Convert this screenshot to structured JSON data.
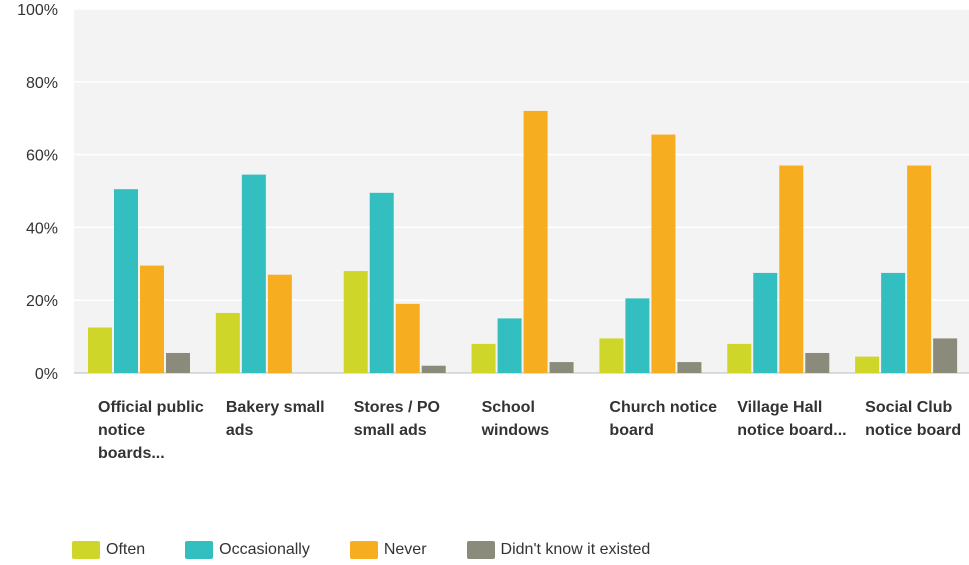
{
  "chart_data": {
    "type": "bar",
    "categories": [
      "Official public notice boards...",
      "Bakery small ads",
      "Stores / PO small ads",
      "School windows",
      "Church notice board",
      "Village Hall notice board...",
      "Social Club notice board"
    ],
    "series": [
      {
        "name": "Often",
        "color": "#cdd629",
        "values": [
          12.5,
          16.5,
          28,
          8,
          9.5,
          8,
          4.5
        ]
      },
      {
        "name": "Occasionally",
        "color": "#33bec0",
        "values": [
          50.5,
          54.5,
          49.5,
          15,
          20.5,
          27.5,
          27.5
        ]
      },
      {
        "name": "Never",
        "color": "#f7ad20",
        "values": [
          29.5,
          27,
          19,
          72,
          65.5,
          57,
          57
        ]
      },
      {
        "name": "Didn't know it existed",
        "color": "#8a8b7a",
        "values": [
          5.5,
          0,
          2,
          3,
          3,
          5.5,
          9.5
        ]
      }
    ],
    "yticks": [
      "0%",
      "20%",
      "40%",
      "60%",
      "80%",
      "100%"
    ],
    "ylim": [
      0,
      100
    ],
    "grid": true,
    "legend_position": "bottom-left"
  }
}
